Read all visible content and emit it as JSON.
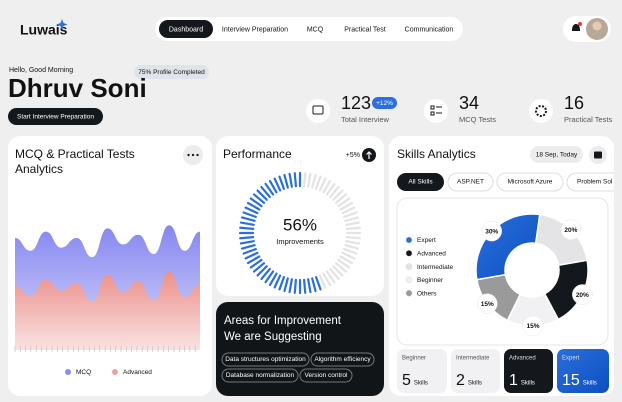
{
  "nav": {
    "logo": "Luwais",
    "items": [
      "Dashboard",
      "Interview Preparation",
      "MCQ",
      "Practical Test",
      "Communication"
    ]
  },
  "header": {
    "greeting": "Hello, Good Morning",
    "profile_badge": "75% Profile Completed",
    "name": "Dhruv Soni",
    "button": "Start Interview Preparation"
  },
  "stats": [
    {
      "value": 123,
      "badge": "+12%",
      "label": "Total Interview"
    },
    {
      "value": 34,
      "label": "MCQ Tests"
    },
    {
      "value": 16,
      "label": "Practical Tests"
    }
  ],
  "analytics": {
    "title": [
      "MCQ & Practical Tests",
      "Analytics"
    ],
    "chart_data": {
      "type": "area",
      "ylim": [
        0,
        100
      ],
      "series": [
        {
          "name": "MCQ",
          "color": "#8b8cf2",
          "values": [
            70,
            62,
            74,
            64,
            70,
            58,
            76,
            66,
            72,
            60,
            78,
            62,
            74
          ]
        },
        {
          "name": "Advanced",
          "color": "#f0a29b",
          "values": [
            40,
            34,
            44,
            37,
            42,
            30,
            47,
            36,
            43,
            31,
            49,
            33,
            41
          ]
        }
      ]
    }
  },
  "performance": {
    "title": "Performance",
    "change": "+5%",
    "value": 56,
    "value_label": "56%",
    "caption": "Improvements"
  },
  "improvement": {
    "title": [
      "Areas for Improvement",
      "We are Suggesting"
    ],
    "tags": [
      "Data structures optimization",
      "Algorithm efficiency",
      "Database normalization",
      "Version control"
    ]
  },
  "skills": {
    "title": "Skills Analytics",
    "date": "18 Sep, Today",
    "tabs": [
      "All Skills",
      "ASP.NET",
      "Microsoft Azure",
      "Problem Sol"
    ],
    "chart_data": {
      "type": "donut",
      "categories": [
        "Expert",
        "Advanced",
        "Intermediate",
        "Beginner",
        "Others"
      ],
      "values": [
        30,
        20,
        20,
        15,
        15
      ],
      "value_labels": [
        "30%",
        "20%",
        "20%",
        "15%",
        "15%"
      ],
      "colors": [
        "#2a6fdc",
        "#14181c",
        "#e4e4e6",
        "#f1f1f3",
        "#9a9a9a"
      ]
    },
    "tiles": [
      {
        "label": "Beginner",
        "value": 5,
        "unit": "Skills"
      },
      {
        "label": "Intermediate",
        "value": 2,
        "unit": "Skills"
      },
      {
        "label": "Advanced",
        "value": 1,
        "unit": "Skills"
      },
      {
        "label": "Expert",
        "value": 15,
        "unit": "Skills"
      }
    ]
  }
}
